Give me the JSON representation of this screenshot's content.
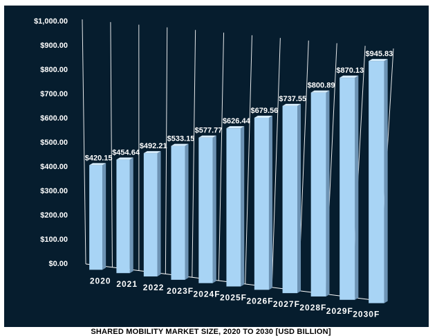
{
  "chart_data": {
    "type": "bar",
    "categories": [
      "2020",
      "2021",
      "2022",
      "2023F",
      "2024F",
      "2025F",
      "2026F",
      "2027F",
      "2028F",
      "2029F",
      "2030F"
    ],
    "values": [
      420.15,
      454.64,
      492.21,
      533.15,
      577.77,
      626.44,
      679.56,
      737.55,
      800.89,
      870.13,
      945.83
    ],
    "data_labels": [
      "$420.15",
      "$454.64",
      "$492.21",
      "$533.15",
      "$577.77",
      "$626.44",
      "$679.56",
      "$737.55",
      "$800.89",
      "$870.13",
      "$945.83"
    ],
    "y_ticks": [
      "$0.00",
      "$100.00",
      "$200.00",
      "$300.00",
      "$400.00",
      "$500.00",
      "$600.00",
      "$700.00",
      "$800.00",
      "$900.00",
      "$1,000.00"
    ],
    "ylim": [
      0,
      1000
    ],
    "title": "SHARED MOBILITY MARKET SIZE, 2020 TO 2030 [USD BILLION]",
    "xlabel": "",
    "ylabel": "",
    "grid": true,
    "style": "3d-bar",
    "colors": {
      "background": "#061d2e",
      "bar_front": "#a8d4f5",
      "bar_top": "#d6ecfb",
      "bar_side": "#6d93b4",
      "grid": "#ffffff"
    }
  }
}
